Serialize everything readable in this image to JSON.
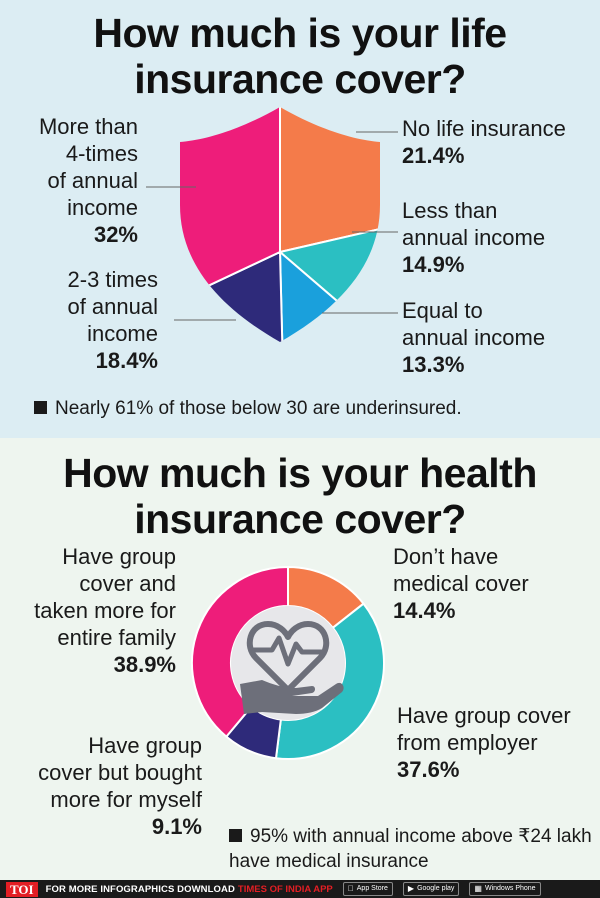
{
  "chart_data": [
    {
      "type": "pie",
      "title": "How much is your life insurance cover?",
      "slices": [
        {
          "label": "No life insurance",
          "value": 21.4,
          "value_label": "21.4%",
          "color": "#f47b4a"
        },
        {
          "label": "Less than annual income",
          "value": 14.9,
          "value_label": "14.9%",
          "color": "#2bbfc2"
        },
        {
          "label": "Equal to annual income",
          "value": 13.3,
          "value_label": "13.3%",
          "color": "#1aa0dc"
        },
        {
          "label": "2-3 times of annual income",
          "value": 18.4,
          "value_label": "18.4%",
          "color": "#2e2a7a"
        },
        {
          "label": "More than 4-times of annual income",
          "value": 32,
          "value_label": "32%",
          "color": "#ee1d7a"
        }
      ],
      "note": "Nearly 61% of those below 30 are underinsured."
    },
    {
      "type": "pie",
      "title": "How much is your health insurance cover?",
      "slices": [
        {
          "label": "Don’t have medical cover",
          "value": 14.4,
          "value_label": "14.4%",
          "color": "#f47b4a"
        },
        {
          "label": "Have group cover from employer",
          "value": 37.6,
          "value_label": "37.6%",
          "color": "#2bbfc2"
        },
        {
          "label": "Have group cover but bought more for myself",
          "value": 9.1,
          "value_label": "9.1%",
          "color": "#2e2a7a"
        },
        {
          "label": "Have group cover and taken more for entire family",
          "value": 38.9,
          "value_label": "38.9%",
          "color": "#ee1d7a"
        }
      ],
      "note": "95% with annual income above ₹24 lakh have medical insurance"
    }
  ],
  "life": {
    "title_line1": "How much is your life",
    "title_line2": "insurance cover?",
    "labels": {
      "more4_l1": "More than",
      "more4_l2": "4-times",
      "more4_l3": "of annual",
      "more4_l4": "income",
      "times23_l1": "2-3 times",
      "times23_l2": "of annual",
      "times23_l3": "income",
      "none_l1": "No life insurance",
      "less_l1": "Less than",
      "less_l2": "annual income",
      "equal_l1": "Equal to",
      "equal_l2": "annual income"
    }
  },
  "health": {
    "title_line1": "How much is your health",
    "title_line2": "insurance cover?",
    "labels": {
      "family_l1": "Have group",
      "family_l2": "cover and",
      "family_l3": "taken more for",
      "family_l4": "entire family",
      "none_l1": "Don’t have",
      "none_l2": "medical cover",
      "employer_l1": "Have group cover",
      "employer_l2": "from employer",
      "myself_l1": "Have group",
      "myself_l2": "cover but bought",
      "myself_l3": "more for myself"
    },
    "icon": "heart-hand-icon"
  },
  "footer": {
    "logo": "TOI",
    "text": "FOR MORE  INFOGRAPHICS DOWNLOAD",
    "app": "TIMES OF INDIA  APP",
    "appstore_small": "Available on the",
    "appstore": "App Store",
    "googleplay_small": "Available on",
    "googleplay": "Google play",
    "windows": "Windows Phone"
  }
}
